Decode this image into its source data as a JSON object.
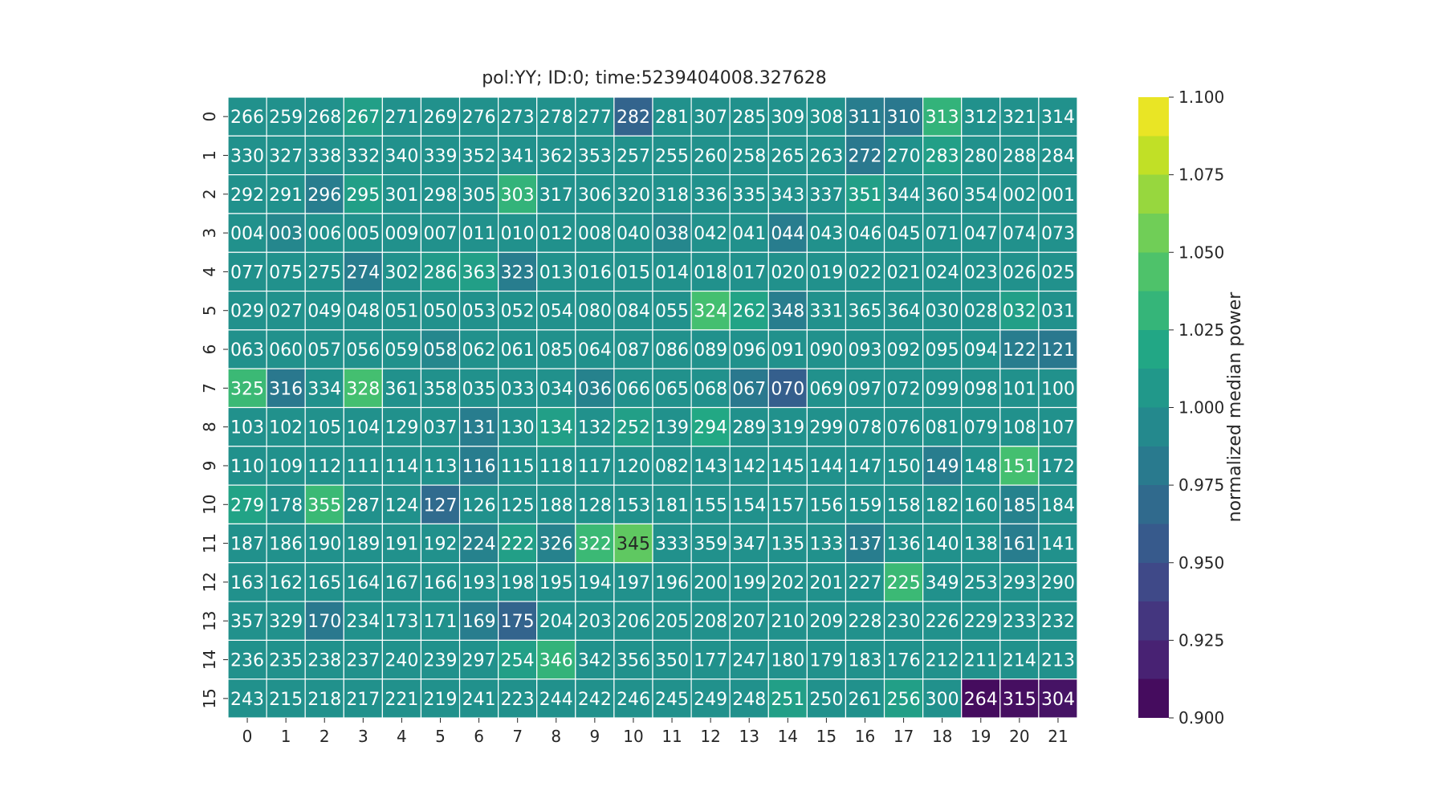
{
  "chart_data": {
    "type": "heatmap",
    "title": "pol:YY; ID:0; time:5239404008.327628",
    "xlabel": "",
    "ylabel": "",
    "x_tick_labels": [
      "0",
      "1",
      "2",
      "3",
      "4",
      "5",
      "6",
      "7",
      "8",
      "9",
      "10",
      "11",
      "12",
      "13",
      "14",
      "15",
      "16",
      "17",
      "18",
      "19",
      "20",
      "21"
    ],
    "y_tick_labels": [
      "0",
      "1",
      "2",
      "3",
      "4",
      "5",
      "6",
      "7",
      "8",
      "9",
      "10",
      "11",
      "12",
      "13",
      "14",
      "15"
    ],
    "colorscale": "viridis",
    "color_range": [
      0.9,
      1.1
    ],
    "colorbar": {
      "label": "normalized median power",
      "ticks": [
        "0.900",
        "0.925",
        "0.950",
        "0.975",
        "1.000",
        "1.025",
        "1.050",
        "1.075",
        "1.100"
      ]
    },
    "annotations": [
      [
        "266",
        "259",
        "268",
        "267",
        "271",
        "269",
        "276",
        "273",
        "278",
        "277",
        "282",
        "281",
        "307",
        "285",
        "309",
        "308",
        "311",
        "310",
        "313",
        "312",
        "321",
        "314"
      ],
      [
        "330",
        "327",
        "338",
        "332",
        "340",
        "339",
        "352",
        "341",
        "362",
        "353",
        "257",
        "255",
        "260",
        "258",
        "265",
        "263",
        "272",
        "270",
        "283",
        "280",
        "288",
        "284"
      ],
      [
        "292",
        "291",
        "296",
        "295",
        "301",
        "298",
        "305",
        "303",
        "317",
        "306",
        "320",
        "318",
        "336",
        "335",
        "343",
        "337",
        "351",
        "344",
        "360",
        "354",
        "002",
        "001"
      ],
      [
        "004",
        "003",
        "006",
        "005",
        "009",
        "007",
        "011",
        "010",
        "012",
        "008",
        "040",
        "038",
        "042",
        "041",
        "044",
        "043",
        "046",
        "045",
        "071",
        "047",
        "074",
        "073"
      ],
      [
        "077",
        "075",
        "275",
        "274",
        "302",
        "286",
        "363",
        "323",
        "013",
        "016",
        "015",
        "014",
        "018",
        "017",
        "020",
        "019",
        "022",
        "021",
        "024",
        "023",
        "026",
        "025"
      ],
      [
        "029",
        "027",
        "049",
        "048",
        "051",
        "050",
        "053",
        "052",
        "054",
        "080",
        "084",
        "055",
        "324",
        "262",
        "348",
        "331",
        "365",
        "364",
        "030",
        "028",
        "032",
        "031"
      ],
      [
        "063",
        "060",
        "057",
        "056",
        "059",
        "058",
        "062",
        "061",
        "085",
        "064",
        "087",
        "086",
        "089",
        "096",
        "091",
        "090",
        "093",
        "092",
        "095",
        "094",
        "122",
        "121"
      ],
      [
        "325",
        "316",
        "334",
        "328",
        "361",
        "358",
        "035",
        "033",
        "034",
        "036",
        "066",
        "065",
        "068",
        "067",
        "070",
        "069",
        "097",
        "072",
        "099",
        "098",
        "101",
        "100"
      ],
      [
        "103",
        "102",
        "105",
        "104",
        "129",
        "037",
        "131",
        "130",
        "134",
        "132",
        "252",
        "139",
        "294",
        "289",
        "319",
        "299",
        "078",
        "076",
        "081",
        "079",
        "108",
        "107"
      ],
      [
        "110",
        "109",
        "112",
        "111",
        "114",
        "113",
        "116",
        "115",
        "118",
        "117",
        "120",
        "082",
        "143",
        "142",
        "145",
        "144",
        "147",
        "150",
        "149",
        "148",
        "151",
        "172"
      ],
      [
        "279",
        "178",
        "355",
        "287",
        "124",
        "127",
        "126",
        "125",
        "188",
        "128",
        "153",
        "181",
        "155",
        "154",
        "157",
        "156",
        "159",
        "158",
        "182",
        "160",
        "185",
        "184"
      ],
      [
        "187",
        "186",
        "190",
        "189",
        "191",
        "192",
        "224",
        "222",
        "326",
        "322",
        "345",
        "333",
        "359",
        "347",
        "135",
        "133",
        "137",
        "136",
        "140",
        "138",
        "161",
        "141"
      ],
      [
        "163",
        "162",
        "165",
        "164",
        "167",
        "166",
        "193",
        "198",
        "195",
        "194",
        "197",
        "196",
        "200",
        "199",
        "202",
        "201",
        "227",
        "225",
        "349",
        "253",
        "293",
        "290"
      ],
      [
        "357",
        "329",
        "170",
        "234",
        "173",
        "171",
        "169",
        "175",
        "204",
        "203",
        "206",
        "205",
        "208",
        "207",
        "210",
        "209",
        "228",
        "230",
        "226",
        "229",
        "233",
        "232"
      ],
      [
        "236",
        "235",
        "238",
        "237",
        "240",
        "239",
        "297",
        "254",
        "346",
        "342",
        "356",
        "350",
        "177",
        "247",
        "180",
        "179",
        "183",
        "176",
        "212",
        "211",
        "214",
        "213"
      ],
      [
        "243",
        "215",
        "218",
        "217",
        "221",
        "219",
        "241",
        "223",
        "244",
        "242",
        "246",
        "245",
        "249",
        "248",
        "251",
        "250",
        "261",
        "256",
        "300",
        "264",
        "315",
        "304"
      ]
    ],
    "values": [
      [
        1.0,
        1.0,
        1.0,
        1.012,
        1.0,
        1.0,
        1.0,
        1.0,
        1.0,
        1.0,
        0.964,
        1.0,
        1.0,
        1.0,
        1.0,
        1.0,
        0.984,
        0.98,
        1.03,
        1.0,
        1.0,
        1.0
      ],
      [
        1.0,
        1.0,
        1.0,
        1.0,
        1.0,
        1.0,
        1.0,
        1.0,
        1.0,
        1.0,
        1.0,
        1.0,
        1.0,
        1.0,
        1.0,
        1.0,
        0.98,
        1.0,
        1.012,
        1.0,
        1.0,
        1.0
      ],
      [
        1.0,
        1.0,
        0.984,
        1.012,
        1.0,
        1.0,
        1.0,
        1.03,
        1.0,
        1.0,
        1.0,
        1.0,
        1.0,
        1.0,
        1.0,
        1.0,
        1.012,
        1.0,
        1.0,
        1.0,
        1.0,
        1.0
      ],
      [
        1.0,
        0.992,
        1.0,
        1.0,
        1.0,
        1.0,
        1.0,
        1.0,
        1.0,
        1.0,
        1.0,
        0.992,
        1.0,
        1.0,
        0.984,
        1.0,
        1.0,
        1.0,
        1.0,
        1.0,
        1.0,
        1.0
      ],
      [
        1.0,
        1.0,
        1.0,
        0.984,
        1.0,
        1.008,
        1.012,
        0.984,
        1.0,
        1.0,
        1.0,
        1.0,
        1.0,
        1.0,
        1.0,
        1.0,
        1.0,
        1.0,
        1.0,
        1.0,
        1.0,
        1.0
      ],
      [
        1.0,
        1.0,
        1.0,
        1.0,
        1.0,
        1.0,
        1.0,
        1.0,
        1.0,
        1.0,
        1.0,
        1.0,
        1.04,
        1.016,
        0.984,
        1.0,
        1.0,
        1.0,
        1.0,
        1.0,
        1.012,
        1.0
      ],
      [
        1.0,
        1.0,
        1.0,
        1.0,
        1.0,
        0.992,
        1.0,
        1.0,
        1.0,
        1.0,
        1.0,
        1.0,
        1.0,
        1.0,
        1.0,
        1.0,
        1.0,
        1.0,
        1.0,
        1.0,
        0.984,
        0.98
      ],
      [
        1.035,
        0.98,
        1.0,
        1.04,
        1.0,
        1.0,
        1.0,
        1.0,
        1.0,
        0.988,
        1.0,
        1.0,
        1.0,
        0.98,
        0.96,
        1.0,
        1.0,
        1.0,
        1.0,
        1.0,
        1.0,
        1.0
      ],
      [
        1.0,
        1.0,
        1.0,
        1.0,
        1.0,
        1.0,
        0.984,
        1.0,
        1.012,
        1.0,
        1.012,
        1.0,
        1.02,
        1.0,
        1.0,
        1.0,
        1.0,
        1.0,
        1.0,
        1.0,
        1.0,
        1.0
      ],
      [
        1.0,
        1.0,
        1.0,
        1.0,
        1.0,
        1.0,
        0.984,
        1.0,
        1.0,
        1.0,
        1.0,
        1.0,
        1.0,
        1.0,
        1.0,
        1.0,
        1.0,
        1.0,
        0.984,
        1.0,
        1.04,
        1.0
      ],
      [
        1.016,
        1.0,
        1.035,
        1.0,
        1.0,
        0.97,
        1.0,
        1.0,
        1.0,
        1.0,
        1.0,
        1.0,
        1.0,
        1.0,
        1.0,
        1.0,
        1.0,
        1.0,
        1.0,
        1.0,
        0.988,
        1.0
      ],
      [
        1.0,
        1.0,
        1.0,
        1.0,
        1.0,
        1.0,
        0.988,
        1.012,
        0.988,
        1.035,
        1.05,
        1.0,
        1.0,
        1.0,
        1.0,
        1.0,
        0.984,
        1.0,
        1.0,
        1.0,
        0.984,
        1.0
      ],
      [
        1.0,
        1.0,
        1.0,
        1.0,
        1.0,
        1.0,
        1.0,
        1.0,
        1.0,
        1.0,
        1.0,
        1.0,
        1.0,
        1.0,
        1.0,
        1.0,
        1.0,
        1.035,
        1.0,
        1.0,
        1.0,
        1.0
      ],
      [
        1.0,
        1.0,
        0.98,
        1.0,
        1.0,
        1.0,
        0.984,
        0.964,
        1.0,
        1.0,
        1.0,
        1.0,
        1.0,
        1.0,
        1.0,
        1.0,
        1.0,
        1.0,
        1.0,
        1.0,
        1.0,
        1.0
      ],
      [
        1.0,
        1.0,
        1.0,
        1.0,
        1.0,
        1.0,
        1.0,
        1.012,
        1.03,
        1.0,
        1.0,
        1.0,
        1.0,
        1.0,
        1.0,
        1.0,
        1.0,
        1.0,
        1.0,
        1.0,
        1.0,
        1.0
      ],
      [
        1.0,
        1.0,
        1.0,
        1.0,
        1.0,
        1.0,
        1.0,
        1.0,
        1.0,
        1.0,
        1.0,
        1.0,
        1.0,
        1.0,
        1.012,
        1.0,
        1.0,
        1.012,
        1.0,
        0.906,
        0.908,
        0.91
      ]
    ]
  }
}
